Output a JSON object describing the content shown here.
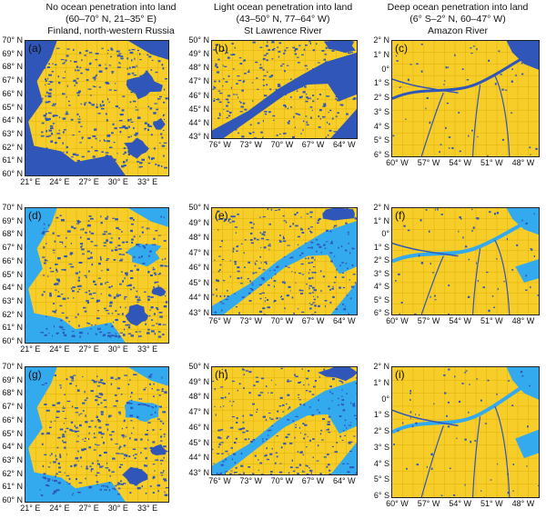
{
  "colors": {
    "land": "#f7cd2a",
    "ocean_dark": "#2f56b8",
    "ocean_light": "#33aaee",
    "grid": "#d9a800"
  },
  "columns": [
    {
      "line1": "No ocean penetration into land",
      "line2": "(60–70° N, 21–35° E)",
      "line3": "Finland, north-western Russia"
    },
    {
      "line1": "Light ocean penetration into land",
      "line2": "(43–50° N, 77–64° W)",
      "line3": "St Lawrence River"
    },
    {
      "line1": "Deep ocean penetration into land",
      "line2": "(6° S–2° N, 60–47° W)",
      "line3": "Amazon River"
    }
  ],
  "panels": [
    {
      "label": "(a)"
    },
    {
      "label": "(b)"
    },
    {
      "label": "(c)"
    },
    {
      "label": "(d)"
    },
    {
      "label": "(e)"
    },
    {
      "label": "(f)"
    },
    {
      "label": "(g)"
    },
    {
      "label": "(h)"
    },
    {
      "label": "(i)"
    }
  ],
  "axes": {
    "finland": {
      "y": [
        "70° N",
        "69° N",
        "68° N",
        "67° N",
        "66° N",
        "65° N",
        "64° N",
        "63° N",
        "62° N",
        "61° N",
        "60° N"
      ],
      "x": [
        "21° E",
        "24° E",
        "27° E",
        "30° E",
        "33° E"
      ]
    },
    "stlawrence": {
      "y": [
        "50° N",
        "49° N",
        "48° N",
        "47° N",
        "46° N",
        "45° N",
        "44° N",
        "43° N"
      ],
      "x": [
        "76° W",
        "73° W",
        "70° W",
        "67° W",
        "64° W"
      ]
    },
    "amazon": {
      "y": [
        "2° N",
        "1° N",
        "0°",
        "1° S",
        "2° S",
        "3° S",
        "4° S",
        "5° S",
        "6° S"
      ],
      "x": [
        "60° W",
        "57° W",
        "54° W",
        "51° W",
        "48° W"
      ]
    }
  }
}
